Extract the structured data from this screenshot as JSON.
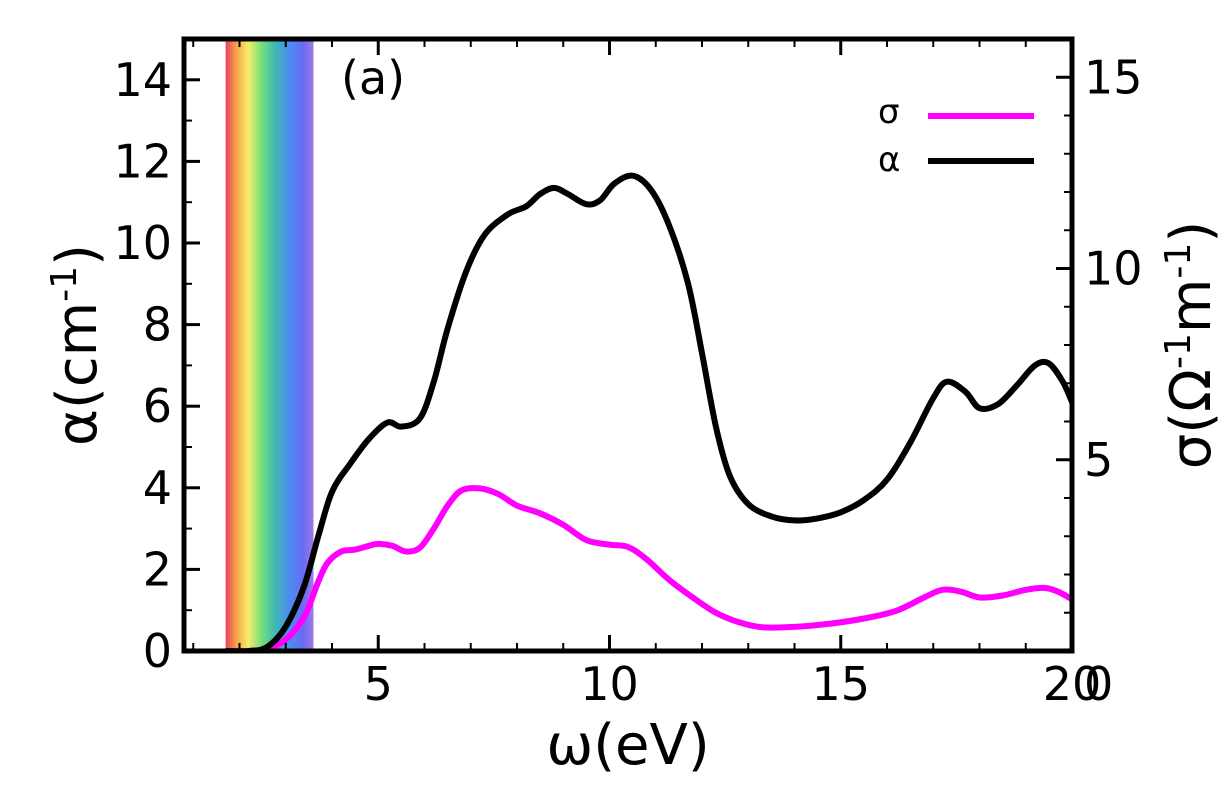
{
  "chart_data": {
    "type": "line",
    "panel_label": "(a)",
    "xlabel": "ω(eV)",
    "ylabel_left": {
      "base": "α(cm",
      "sup": "-1",
      "end": ")"
    },
    "ylabel_right": {
      "base": "σ(Ω",
      "sup1": "-1",
      "mid": "m",
      "sup2": "-1",
      "end": ")"
    },
    "xlim": [
      0.8,
      20
    ],
    "ylim_left": [
      0,
      15
    ],
    "ylim_right": [
      0,
      16
    ],
    "x_ticks": [
      5,
      10,
      15,
      20
    ],
    "x_tick_labels": [
      "5",
      "10",
      "15",
      "20"
    ],
    "x_origin_label": "0",
    "y_left_ticks": [
      0,
      2,
      4,
      6,
      8,
      10,
      12,
      14
    ],
    "y_left_tick_labels": [
      "0",
      "2",
      "4",
      "6",
      "8",
      "10",
      "12",
      "14"
    ],
    "y_right_ticks": [
      5,
      10,
      15
    ],
    "y_right_tick_labels": [
      "5",
      "10",
      "15"
    ],
    "visible_band_x": [
      1.7,
      3.6
    ],
    "grid": false,
    "legend_position": "top-right",
    "series": [
      {
        "name": "σ",
        "axis": "right",
        "color": "#ff00ff",
        "points": [
          [
            1.7,
            0
          ],
          [
            2.2,
            0
          ],
          [
            2.6,
            0.05
          ],
          [
            3.0,
            0.3
          ],
          [
            3.4,
            0.9
          ],
          [
            3.7,
            1.8
          ],
          [
            3.9,
            2.3
          ],
          [
            4.2,
            2.6
          ],
          [
            4.5,
            2.65
          ],
          [
            4.8,
            2.75
          ],
          [
            5.0,
            2.8
          ],
          [
            5.3,
            2.75
          ],
          [
            5.6,
            2.6
          ],
          [
            5.9,
            2.7
          ],
          [
            6.2,
            3.2
          ],
          [
            6.5,
            3.8
          ],
          [
            6.8,
            4.2
          ],
          [
            7.2,
            4.25
          ],
          [
            7.6,
            4.1
          ],
          [
            8.0,
            3.8
          ],
          [
            8.5,
            3.6
          ],
          [
            9.0,
            3.3
          ],
          [
            9.5,
            2.9
          ],
          [
            10.0,
            2.78
          ],
          [
            10.4,
            2.72
          ],
          [
            10.8,
            2.4
          ],
          [
            11.3,
            1.85
          ],
          [
            11.8,
            1.4
          ],
          [
            12.3,
            1.0
          ],
          [
            12.8,
            0.75
          ],
          [
            13.3,
            0.62
          ],
          [
            14.0,
            0.63
          ],
          [
            14.8,
            0.72
          ],
          [
            15.5,
            0.85
          ],
          [
            16.2,
            1.05
          ],
          [
            16.8,
            1.4
          ],
          [
            17.2,
            1.6
          ],
          [
            17.6,
            1.55
          ],
          [
            18.0,
            1.4
          ],
          [
            18.5,
            1.45
          ],
          [
            19.0,
            1.6
          ],
          [
            19.4,
            1.65
          ],
          [
            19.7,
            1.55
          ],
          [
            20.0,
            1.35
          ]
        ]
      },
      {
        "name": "α",
        "axis": "left",
        "color": "#000000",
        "points": [
          [
            1.7,
            0
          ],
          [
            2.2,
            0
          ],
          [
            2.6,
            0.1
          ],
          [
            3.0,
            0.6
          ],
          [
            3.4,
            1.6
          ],
          [
            3.7,
            2.8
          ],
          [
            4.0,
            3.9
          ],
          [
            4.4,
            4.6
          ],
          [
            4.8,
            5.2
          ],
          [
            5.2,
            5.6
          ],
          [
            5.5,
            5.5
          ],
          [
            5.9,
            5.7
          ],
          [
            6.2,
            6.6
          ],
          [
            6.5,
            7.9
          ],
          [
            6.9,
            9.3
          ],
          [
            7.3,
            10.2
          ],
          [
            7.8,
            10.7
          ],
          [
            8.2,
            10.9
          ],
          [
            8.5,
            11.2
          ],
          [
            8.8,
            11.35
          ],
          [
            9.1,
            11.2
          ],
          [
            9.5,
            10.95
          ],
          [
            9.8,
            11.05
          ],
          [
            10.1,
            11.45
          ],
          [
            10.5,
            11.65
          ],
          [
            10.9,
            11.3
          ],
          [
            11.3,
            10.4
          ],
          [
            11.7,
            9.0
          ],
          [
            12.0,
            7.3
          ],
          [
            12.3,
            5.5
          ],
          [
            12.6,
            4.3
          ],
          [
            13.0,
            3.6
          ],
          [
            13.5,
            3.3
          ],
          [
            14.0,
            3.2
          ],
          [
            14.5,
            3.25
          ],
          [
            15.0,
            3.4
          ],
          [
            15.5,
            3.7
          ],
          [
            16.0,
            4.2
          ],
          [
            16.5,
            5.1
          ],
          [
            17.0,
            6.2
          ],
          [
            17.3,
            6.6
          ],
          [
            17.7,
            6.35
          ],
          [
            18.0,
            5.95
          ],
          [
            18.4,
            6.05
          ],
          [
            18.8,
            6.5
          ],
          [
            19.2,
            7.0
          ],
          [
            19.5,
            7.05
          ],
          [
            19.8,
            6.6
          ],
          [
            20.0,
            6.1
          ]
        ]
      }
    ]
  }
}
